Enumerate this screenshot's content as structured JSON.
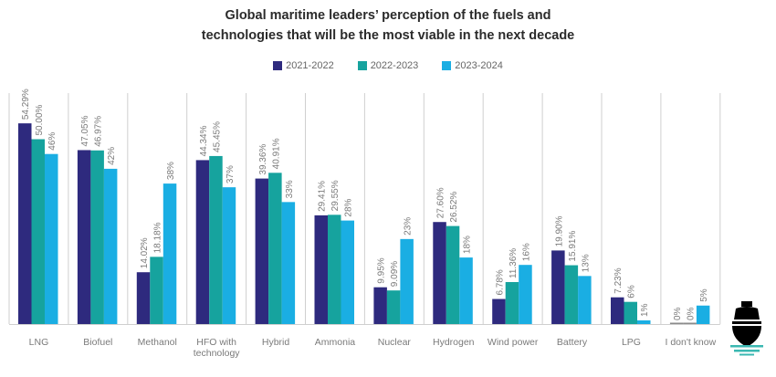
{
  "chart_data": {
    "type": "bar",
    "title": "Global maritime leaders’ perception of the fuels and technologies that will be the most viable in the next decade",
    "title_lines": [
      "Global maritime leaders’ perception of the fuels and",
      "technologies that will be the most viable in the next decade"
    ],
    "xlabel": "",
    "ylabel": "",
    "ylim": [
      0,
      60
    ],
    "grid": false,
    "legend_position": "top-center",
    "categories": [
      "LNG",
      "Biofuel",
      "Methanol",
      "HFO with technology",
      "Hybrid",
      "Ammonia",
      "Nuclear",
      "Hydrogen",
      "Wind power",
      "Battery",
      "LPG",
      "I don't know"
    ],
    "category_lines": [
      [
        "LNG"
      ],
      [
        "Biofuel"
      ],
      [
        "Methanol"
      ],
      [
        "HFO with",
        "technology"
      ],
      [
        "Hybrid"
      ],
      [
        "Ammonia"
      ],
      [
        "Nuclear"
      ],
      [
        "Hydrogen"
      ],
      [
        "Wind power"
      ],
      [
        "Battery"
      ],
      [
        "LPG"
      ],
      [
        "I don't know"
      ]
    ],
    "series": [
      {
        "name": "2021-2022",
        "color": "#2e2a7e",
        "values": [
          54.29,
          47.05,
          14.02,
          44.34,
          39.36,
          29.41,
          9.95,
          27.6,
          6.78,
          19.9,
          7.23,
          0
        ],
        "labels": [
          "54.29%",
          "47.05%",
          "14.02%",
          "44.34%",
          "39.36%",
          "29.41%",
          "9.95%",
          "27.60%",
          "6.78%",
          "19.90%",
          "7.23%",
          "0%"
        ]
      },
      {
        "name": "2022-2023",
        "color": "#16a39e",
        "values": [
          50.0,
          46.97,
          18.18,
          45.45,
          40.91,
          29.55,
          9.09,
          26.52,
          11.36,
          15.91,
          6,
          0
        ],
        "labels": [
          "50.00%",
          "46.97%",
          "18.18%",
          "45.45%",
          "40.91%",
          "29.55%",
          "9.09%",
          "26.52%",
          "11.36%",
          "15.91%",
          "6%",
          "0%"
        ]
      },
      {
        "name": "2023-2024",
        "color": "#1aaee3",
        "values": [
          46,
          42,
          38,
          37,
          33,
          28,
          23,
          18,
          16,
          13,
          1,
          5
        ],
        "labels": [
          "46%",
          "42%",
          "38%",
          "37%",
          "33%",
          "28%",
          "23%",
          "18%",
          "16%",
          "13%",
          "1%",
          "5%"
        ]
      }
    ]
  },
  "decor": {
    "ship_icon": "ship-icon",
    "ship_color": "#000000",
    "wave_color": "#3bb8b2"
  }
}
